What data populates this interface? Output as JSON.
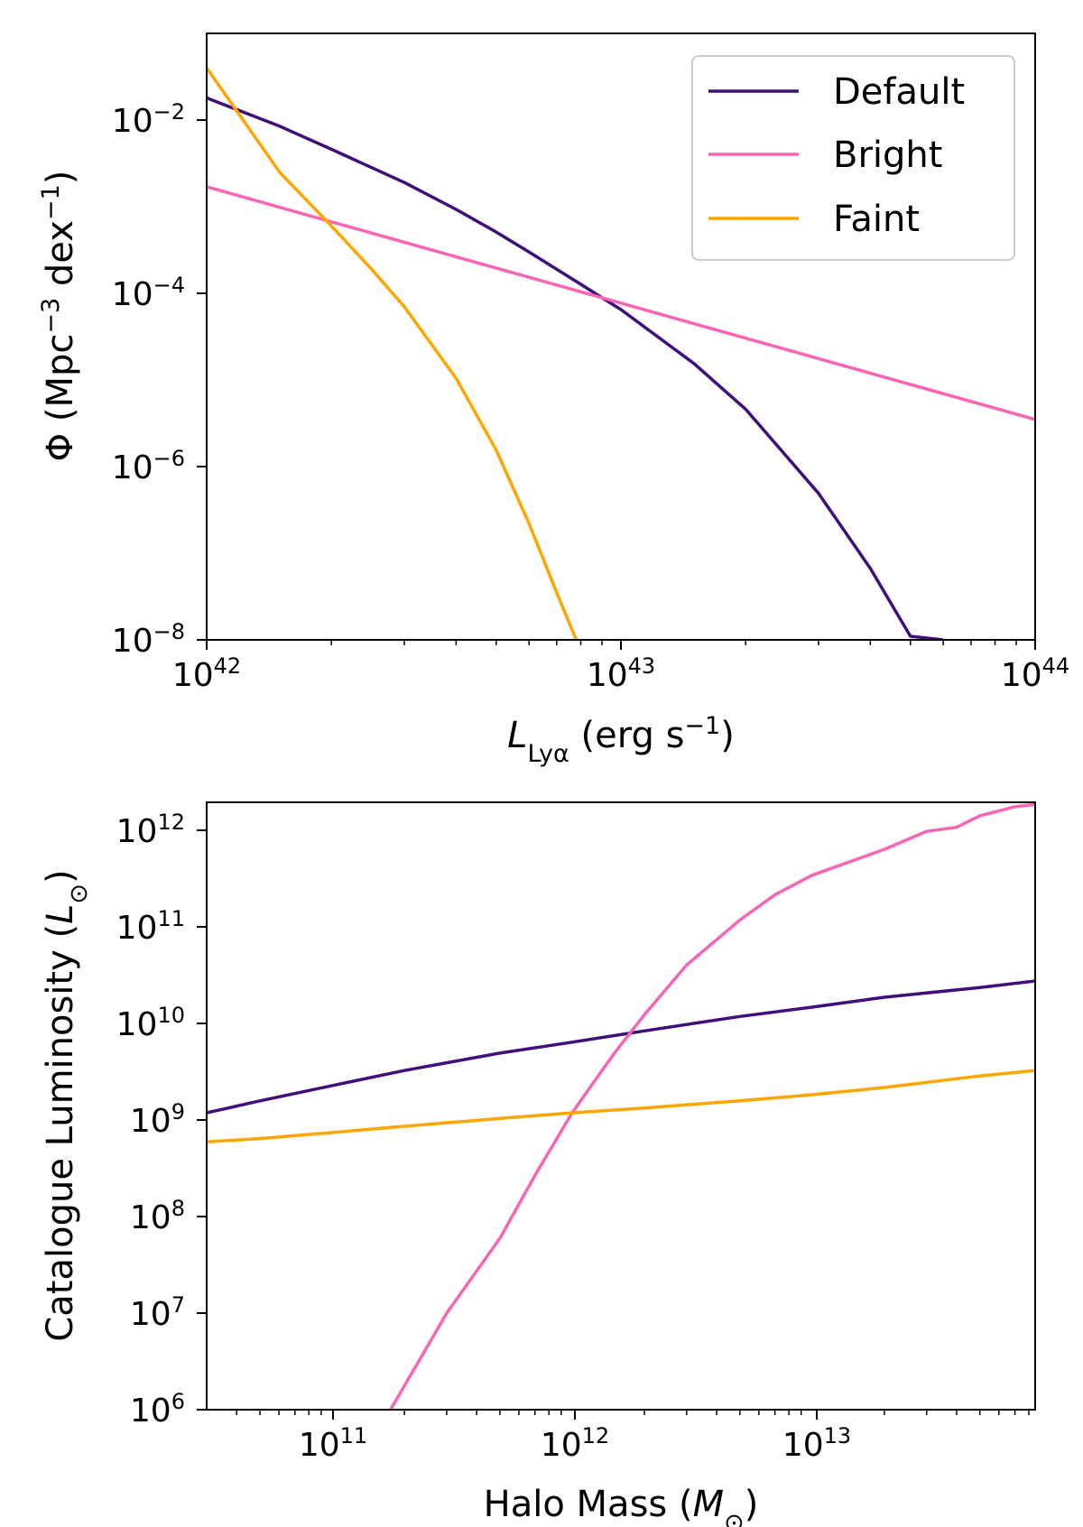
{
  "chart_data": [
    {
      "type": "line",
      "xscale": "log",
      "yscale": "log",
      "xlim": [
        1e+42,
        1e+44
      ],
      "ylim": [
        1e-08,
        0.1
      ],
      "xlabel": {
        "symbol": "L",
        "subscript": "Lyα",
        "unit": " (erg s",
        "unit_exp": "−1",
        "unit_close": ")"
      },
      "ylabel": {
        "main": "Φ (Mpc",
        "exp1": "−3",
        "mid": " dex",
        "exp2": "−1",
        "close": ")"
      },
      "x_ticks": [
        {
          "base": "10",
          "exp": "42",
          "value": 1e+42
        },
        {
          "base": "10",
          "exp": "43",
          "value": 1e+43
        },
        {
          "base": "10",
          "exp": "44",
          "value": 1e+44
        }
      ],
      "y_ticks": [
        {
          "base": "10",
          "exp": "−2",
          "value": 0.01
        },
        {
          "base": "10",
          "exp": "−4",
          "value": 0.0001
        },
        {
          "base": "10",
          "exp": "−6",
          "value": 1e-06
        },
        {
          "base": "10",
          "exp": "−8",
          "value": 1e-08
        }
      ],
      "legend": {
        "position": "top-right",
        "entries": [
          "Default",
          "Bright",
          "Faint"
        ]
      },
      "series": [
        {
          "name": "Default",
          "color": "#3f0f7a",
          "x": [
            1e+42,
            1.5e+42,
            2e+42,
            3e+42,
            4e+42,
            5e+42,
            6e+42,
            8e+42,
            1e+43,
            1.5e+43,
            2e+43,
            3e+43,
            4e+43,
            5e+43,
            6e+43
          ],
          "y": [
            0.018,
            0.0085,
            0.0046,
            0.0019,
            0.00093,
            0.00051,
            0.0003,
            0.000127,
            6.5e-05,
            1.55e-05,
            4.6e-06,
            4.9e-07,
            6.7e-08,
            1.1e-08,
            1e-08
          ]
        },
        {
          "name": "Bright",
          "color": "#f765b4",
          "x": [
            1e+42,
            1e+44
          ],
          "y": [
            0.0017,
            3.5e-06
          ]
        },
        {
          "name": "Faint",
          "color": "#ffa500",
          "x": [
            1e+42,
            1.5e+42,
            2e+42,
            2.5e+42,
            3e+42,
            4e+42,
            5e+42,
            6e+42,
            7e+42,
            7.8e+42
          ],
          "y": [
            0.04,
            0.0025,
            0.0006,
            0.00019,
            7e-05,
            1.05e-05,
            1.55e-06,
            2.2e-07,
            3.5e-08,
            1e-08
          ]
        }
      ]
    },
    {
      "type": "line",
      "xscale": "log",
      "yscale": "log",
      "xlim": [
        30000000000.0,
        85000000000000.0
      ],
      "ylim": [
        1000000.0,
        2000000000000.0
      ],
      "xlabel": {
        "main": "Halo Mass (",
        "symbol": "M",
        "sub": "⊙",
        "close": ")"
      },
      "ylabel": {
        "main": "Catalogue Luminosity (",
        "symbol": "L",
        "sub": "⊙",
        "close": ")"
      },
      "x_ticks": [
        {
          "base": "10",
          "exp": "11",
          "value": 100000000000.0
        },
        {
          "base": "10",
          "exp": "12",
          "value": 1000000000000.0
        },
        {
          "base": "10",
          "exp": "13",
          "value": 10000000000000.0
        }
      ],
      "y_ticks": [
        {
          "base": "10",
          "exp": "6",
          "value": 1000000.0
        },
        {
          "base": "10",
          "exp": "7",
          "value": 10000000.0
        },
        {
          "base": "10",
          "exp": "8",
          "value": 100000000.0
        },
        {
          "base": "10",
          "exp": "9",
          "value": 1000000000.0
        },
        {
          "base": "10",
          "exp": "10",
          "value": 10000000000.0
        },
        {
          "base": "10",
          "exp": "11",
          "value": 100000000000.0
        },
        {
          "base": "10",
          "exp": "12",
          "value": 1000000000000.0
        }
      ],
      "series": [
        {
          "name": "Default",
          "color": "#3f0f7a",
          "x": [
            30000000000.0,
            50000000000.0,
            100000000000.0,
            200000000000.0,
            500000000000.0,
            1000000000000.0,
            2000000000000.0,
            5000000000000.0,
            10000000000000.0,
            20000000000000.0,
            50000000000000.0,
            85000000000000.0
          ],
          "y": [
            1200000000.0,
            1600000000.0,
            2300000000.0,
            3300000000.0,
            5000000000.0,
            6500000000.0,
            8500000000.0,
            12000000000.0,
            15000000000.0,
            19000000000.0,
            24000000000.0,
            28000000000.0
          ]
        },
        {
          "name": "Bright",
          "color": "#f765b4",
          "x": [
            175000000000.0,
            300000000000.0,
            500000000000.0,
            700000000000.0,
            1000000000000.0,
            1500000000000.0,
            2000000000000.0,
            3000000000000.0,
            5000000000000.0,
            7000000000000.0,
            10000000000000.0,
            20000000000000.0,
            30000000000000.0,
            40000000000000.0,
            50000000000000.0,
            70000000000000.0,
            85000000000000.0
          ],
          "y": [
            1000000.0,
            10000000.0,
            60000000.0,
            270000000.0,
            1200000000.0,
            5000000000.0,
            12500000000.0,
            41000000000.0,
            120000000000.0,
            220000000000.0,
            350000000000.0,
            650000000000.0,
            1000000000000.0,
            1100000000000.0,
            1450000000000.0,
            1800000000000.0,
            1900000000000.0
          ]
        },
        {
          "name": "Faint",
          "color": "#ffa500",
          "x": [
            30000000000.0,
            50000000000.0,
            100000000000.0,
            200000000000.0,
            500000000000.0,
            1000000000000.0,
            2000000000000.0,
            5000000000000.0,
            10000000000000.0,
            20000000000000.0,
            50000000000000.0,
            85000000000000.0
          ],
          "y": [
            600000000.0,
            650000000.0,
            750000000.0,
            870000000.0,
            1050000000.0,
            1200000000.0,
            1350000000.0,
            1600000000.0,
            1850000000.0,
            2200000000.0,
            2900000000.0,
            3300000000.0
          ]
        }
      ]
    }
  ]
}
